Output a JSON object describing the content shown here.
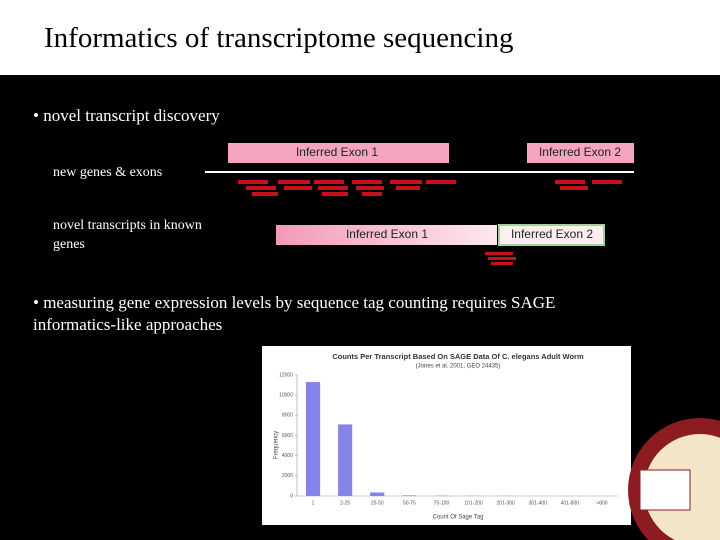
{
  "header": {
    "title": "Informatics of transcriptome sequencing"
  },
  "bullets": [
    "• novel transcript discovery",
    "• measuring gene expression levels by sequence tag counting requires SAGE informatics-like approaches"
  ],
  "rows": [
    {
      "label": "new genes & exons",
      "exons": [
        "Inferred Exon 1",
        "Inferred Exon 2"
      ]
    },
    {
      "label": "novel transcripts in known genes",
      "exons": [
        "Inferred Exon 1",
        "Inferred Exon 2"
      ]
    }
  ],
  "chart_data": {
    "type": "bar",
    "title": "Counts Per Transcript Based On SAGE Data Of C. elegans Adult Worm",
    "subtitle": "(Jones et al. 2001, GEO 24435)",
    "x_label": "Count Of Sage Tag",
    "y_label": "Frequency",
    "categories": [
      "1",
      "2-25",
      "25-50",
      "50-75",
      "75-100",
      "101-200",
      "201-300",
      "301-400",
      "401-800",
      ">800"
    ],
    "values": [
      11300,
      7100,
      350,
      60,
      30,
      20,
      10,
      5,
      5,
      2
    ],
    "color": "#8484e6",
    "ylim": [
      0,
      12000
    ],
    "yticks": [
      0,
      2000,
      4000,
      6000,
      8000,
      10000,
      12000
    ]
  }
}
